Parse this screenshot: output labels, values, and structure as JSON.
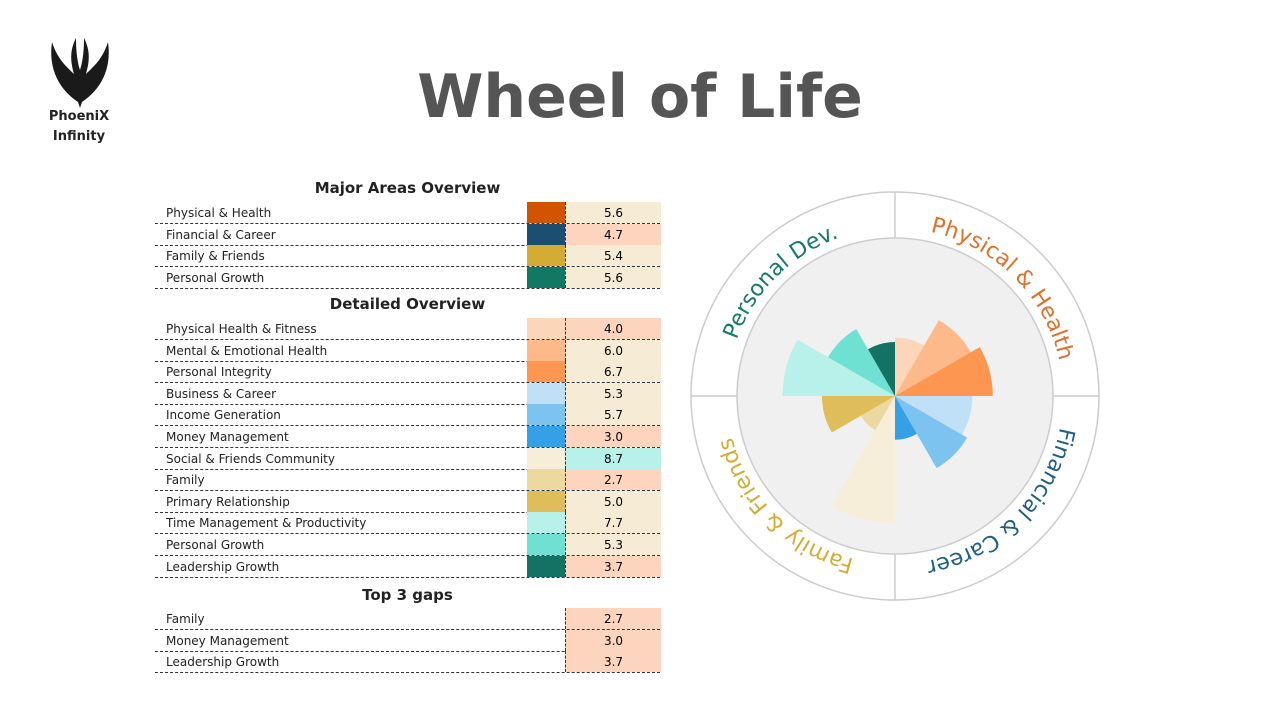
{
  "header": {
    "brand": [
      "PhoeniX",
      "Infinity"
    ],
    "title": "Wheel of Life"
  },
  "major": {
    "title": "Major Areas Overview",
    "rows": [
      {
        "name": "Physical & Health",
        "color": "#d35400",
        "value": "5.6"
      },
      {
        "name": "Financial & Career",
        "color": "#1b4f72",
        "value": "4.7"
      },
      {
        "name": "Family & Friends",
        "color": "#d4ac34",
        "value": "5.4"
      },
      {
        "name": "Personal Growth",
        "color": "#117864",
        "value": "5.6"
      }
    ]
  },
  "detailed_title": "Detailed Overview",
  "chart_data": {
    "type": "polar_area",
    "categories": [
      "Physical Health & Fitness",
      "Mental & Emotional Health",
      "Personal Integrity",
      "Business & Career",
      "Income Generation",
      "Money Management",
      "Social & Friends Community",
      "Family",
      "Primary Relationship",
      "Time Management & Productivity",
      "Personal Growth",
      "Leadership Growth"
    ],
    "values": [
      4.0,
      6.0,
      6.7,
      5.3,
      5.7,
      3.0,
      8.7,
      2.7,
      5.0,
      7.7,
      5.3,
      3.7
    ],
    "value_labels": [
      "4.0",
      "6.0",
      "6.7",
      "5.3",
      "5.7",
      "3.0",
      "8.7",
      "2.7",
      "5.0",
      "7.7",
      "5.3",
      "3.7"
    ],
    "colors": [
      "#fdd5b9",
      "#fdb98a",
      "#fd9650",
      "#bfe0f7",
      "#7cc4ef",
      "#36a0e6",
      "#f6eed8",
      "#ecd9a0",
      "#dfbd5a",
      "#b8f0ea",
      "#6fe1d2",
      "#137263"
    ],
    "rlim": [
      0,
      10
    ],
    "sectors": [
      {
        "label": "Physical & Health",
        "color": "#e0702a"
      },
      {
        "label": "Financial & Career",
        "color": "#1f5f86"
      },
      {
        "label": "Family & Friends",
        "color": "#d4ac34"
      },
      {
        "label": "Personal Dev.",
        "color": "#157a68"
      }
    ]
  },
  "gaps": {
    "title": "Top 3 gaps",
    "rows": [
      {
        "name": "Family",
        "value": "2.7"
      },
      {
        "name": "Money Management",
        "value": "3.0"
      },
      {
        "name": "Leadership Growth",
        "value": "3.7"
      }
    ]
  }
}
